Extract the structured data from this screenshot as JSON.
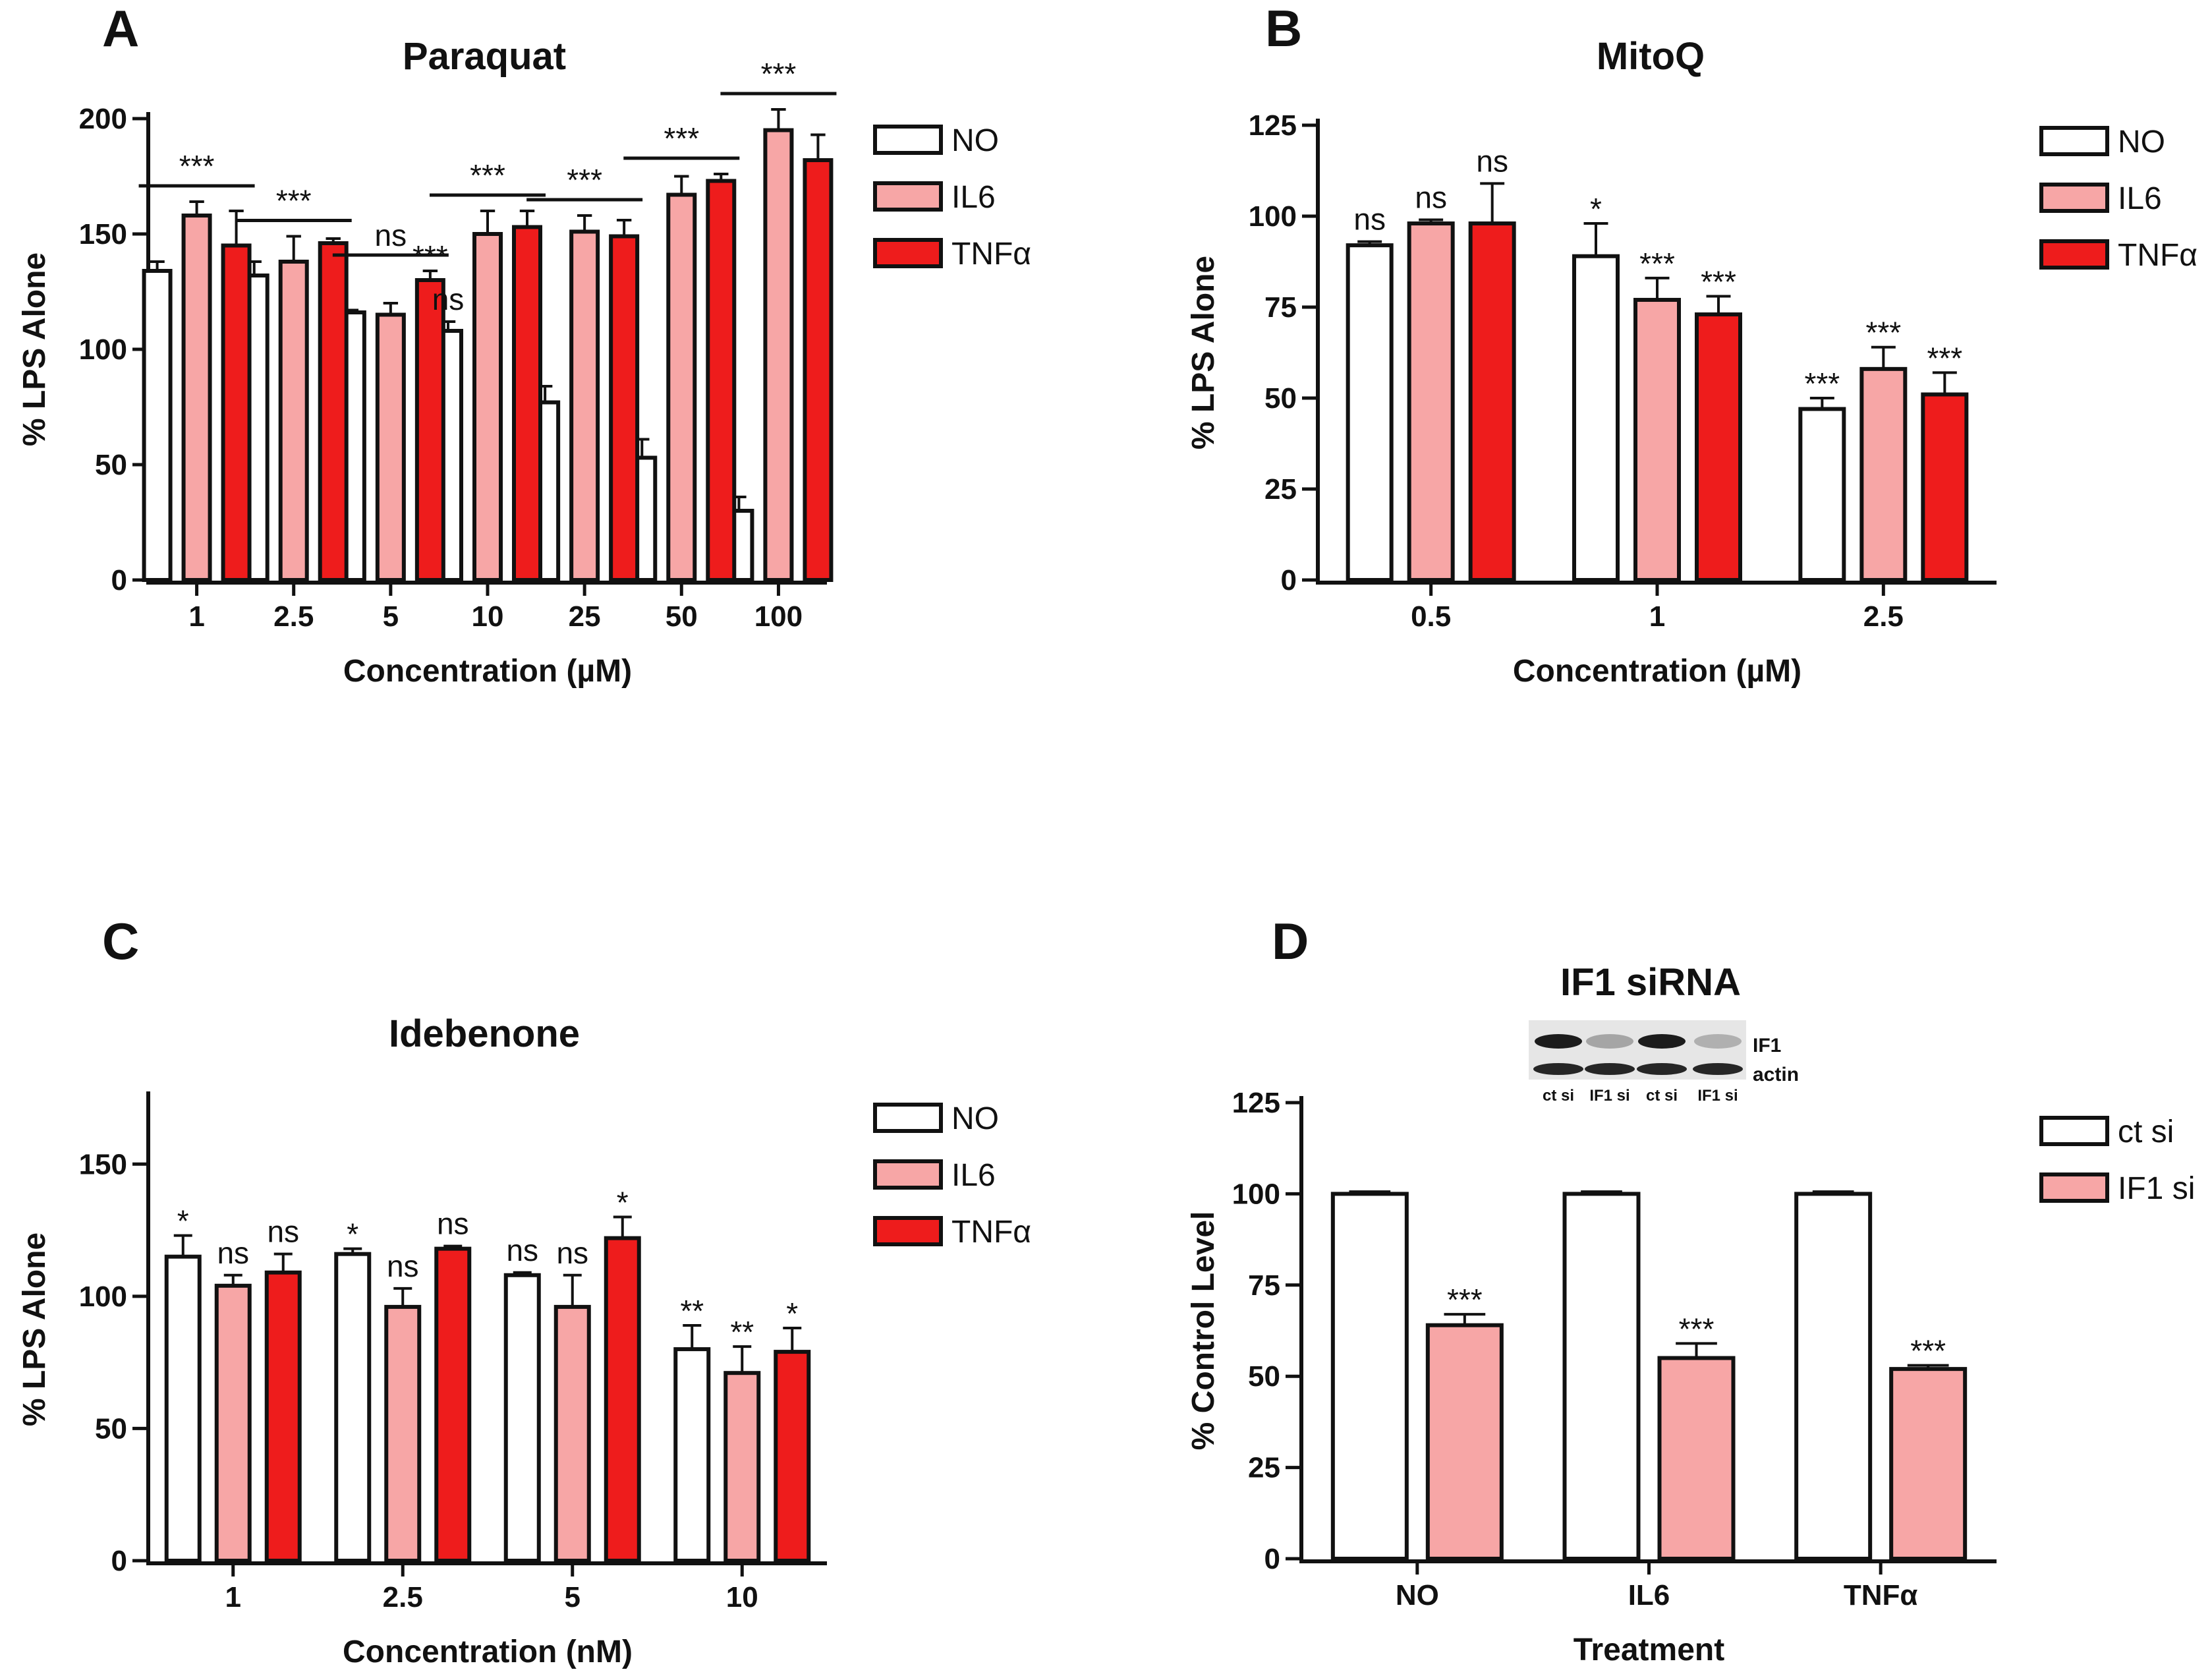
{
  "chart_data": [
    {
      "panel": "A",
      "type": "bar",
      "title": "Paraquat",
      "xlabel": "Concentration (µM)",
      "ylabel": "% LPS Alone",
      "ylim": [
        0,
        200
      ],
      "yticks": [
        0,
        50,
        100,
        150,
        200
      ],
      "categories": [
        "1",
        "2.5",
        "5",
        "10",
        "25",
        "50",
        "100"
      ],
      "series": [
        {
          "name": "NO",
          "color": "#ffffff",
          "values": [
            134,
            132,
            116,
            108,
            77,
            53,
            30
          ],
          "errors": [
            4,
            6,
            1,
            4,
            7,
            8,
            6
          ]
        },
        {
          "name": "IL6",
          "color": "#f7a6a6",
          "values": [
            158,
            138,
            115,
            150,
            151,
            167,
            195
          ],
          "errors": [
            6,
            11,
            5,
            10,
            7,
            8,
            9
          ]
        },
        {
          "name": "TNFα",
          "color": "#ee1c1c",
          "values": [
            145,
            146,
            130,
            153,
            149,
            173,
            182
          ],
          "errors": [
            15,
            2,
            4,
            7,
            7,
            3,
            11
          ]
        }
      ],
      "annotations": [
        {
          "label": "***",
          "kind": "bracket",
          "category": 0
        },
        {
          "label": "***",
          "kind": "bracket",
          "category": 1
        },
        {
          "label": "ns",
          "kind": "bracket",
          "category": 2
        },
        {
          "label": "***",
          "kind": "bar",
          "category": 2,
          "series": 2
        },
        {
          "label": "ns",
          "kind": "bar",
          "category": 3,
          "series": 0
        },
        {
          "label": "***",
          "kind": "bracket",
          "category": 3
        },
        {
          "label": "***",
          "kind": "bracket",
          "category": 4
        },
        {
          "label": "***",
          "kind": "bracket",
          "category": 5
        },
        {
          "label": "***",
          "kind": "bracket",
          "category": 6
        }
      ],
      "legend": [
        "NO",
        "IL6",
        "TNFα"
      ]
    },
    {
      "panel": "B",
      "type": "bar",
      "title": "MitoQ",
      "xlabel": "Concentration (µM)",
      "ylabel": "% LPS Alone",
      "ylim": [
        0,
        125
      ],
      "yticks": [
        0,
        25,
        50,
        75,
        100,
        125
      ],
      "categories": [
        "0.5",
        "1",
        "2.5"
      ],
      "series": [
        {
          "name": "NO",
          "color": "#ffffff",
          "values": [
            92,
            89,
            47
          ],
          "errors": [
            1,
            9,
            3
          ]
        },
        {
          "name": "IL6",
          "color": "#f7a6a6",
          "values": [
            98,
            77,
            58
          ],
          "errors": [
            1,
            6,
            6
          ]
        },
        {
          "name": "TNFα",
          "color": "#ee1c1c",
          "values": [
            98,
            73,
            51
          ],
          "errors": [
            11,
            5,
            6
          ]
        }
      ],
      "annotations": [
        {
          "label": "ns",
          "category": 0,
          "series": 0
        },
        {
          "label": "ns",
          "category": 0,
          "series": 1
        },
        {
          "label": "ns",
          "category": 0,
          "series": 2
        },
        {
          "label": "*",
          "category": 1,
          "series": 0
        },
        {
          "label": "***",
          "category": 1,
          "series": 1
        },
        {
          "label": "***",
          "category": 1,
          "series": 2
        },
        {
          "label": "***",
          "category": 2,
          "series": 0
        },
        {
          "label": "***",
          "category": 2,
          "series": 1
        },
        {
          "label": "***",
          "category": 2,
          "series": 2
        }
      ],
      "legend": [
        "NO",
        "IL6",
        "TNFα"
      ]
    },
    {
      "panel": "C",
      "type": "bar",
      "title": "Idebenone",
      "xlabel": "Concentration (nM)",
      "ylabel": "% LPS Alone",
      "ylim": [
        0,
        175
      ],
      "yticks": [
        0,
        50,
        100,
        150
      ],
      "categories": [
        "1",
        "2.5",
        "5",
        "10"
      ],
      "series": [
        {
          "name": "NO",
          "color": "#ffffff",
          "values": [
            115,
            116,
            108,
            80
          ],
          "errors": [
            8,
            2,
            1,
            9
          ]
        },
        {
          "name": "IL6",
          "color": "#f7a6a6",
          "values": [
            104,
            96,
            96,
            71
          ],
          "errors": [
            4,
            7,
            12,
            10
          ]
        },
        {
          "name": "TNFα",
          "color": "#ee1c1c",
          "values": [
            109,
            118,
            122,
            79
          ],
          "errors": [
            7,
            1,
            8,
            9
          ]
        }
      ],
      "annotations": [
        {
          "label": "*",
          "category": 0,
          "series": 0
        },
        {
          "label": "ns",
          "category": 0,
          "series": 1
        },
        {
          "label": "ns",
          "category": 0,
          "series": 2
        },
        {
          "label": "*",
          "category": 1,
          "series": 0
        },
        {
          "label": "ns",
          "category": 1,
          "series": 1
        },
        {
          "label": "ns",
          "category": 1,
          "series": 2
        },
        {
          "label": "ns",
          "category": 2,
          "series": 0
        },
        {
          "label": "ns",
          "category": 2,
          "series": 1
        },
        {
          "label": "*",
          "category": 2,
          "series": 2
        },
        {
          "label": "**",
          "category": 3,
          "series": 0
        },
        {
          "label": "**",
          "category": 3,
          "series": 1
        },
        {
          "label": "*",
          "category": 3,
          "series": 2
        }
      ],
      "legend": [
        "NO",
        "IL6",
        "TNFα"
      ]
    },
    {
      "panel": "D",
      "type": "bar",
      "title": "IF1 siRNA",
      "xlabel": "Treatment",
      "ylabel": "% Control Level",
      "ylim": [
        0,
        125
      ],
      "yticks": [
        0,
        25,
        50,
        75,
        100,
        125
      ],
      "categories": [
        "NO",
        "IL6",
        "TNFα"
      ],
      "series": [
        {
          "name": "ct si",
          "color": "#ffffff",
          "values": [
            100,
            100,
            100
          ],
          "errors": [
            0.6,
            0.6,
            0.6
          ]
        },
        {
          "name": "IF1 si",
          "color": "#f7a6a6",
          "values": [
            64,
            55,
            52
          ],
          "errors": [
            3,
            4,
            1
          ]
        }
      ],
      "annotations": [
        {
          "label": "***",
          "category": 0,
          "series": 1
        },
        {
          "label": "***",
          "category": 1,
          "series": 1
        },
        {
          "label": "***",
          "category": 2,
          "series": 1
        }
      ],
      "legend": [
        "ct si",
        "IF1 si"
      ],
      "blot": {
        "bands": [
          "IF1",
          "actin"
        ],
        "lanes": [
          "ct si",
          "IF1 si",
          "ct si",
          "IF1 si"
        ]
      }
    }
  ]
}
